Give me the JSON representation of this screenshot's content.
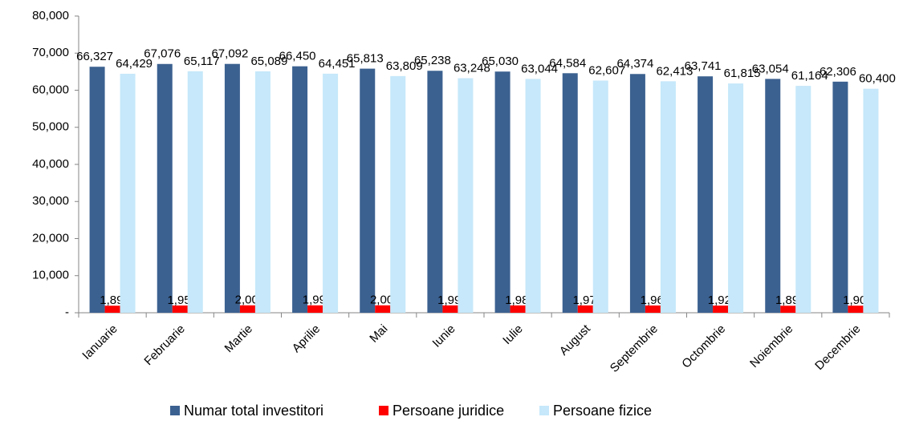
{
  "chart_data": {
    "type": "bar",
    "categories": [
      "Ianuarie",
      "Februarie",
      "Martie",
      "Aprilie",
      "Mai",
      "Iunie",
      "Iulie",
      "August",
      "Septembrie",
      "Octombrie",
      "Noiembrie",
      "Decembrie"
    ],
    "series": [
      {
        "name": "Numar total investitori",
        "color": "#3b6190",
        "values": [
          66327,
          67076,
          67092,
          66450,
          65813,
          65238,
          65030,
          64584,
          64374,
          63741,
          63054,
          62306
        ],
        "value_labels": [
          "66,327",
          "67,076",
          "67,092",
          "66,450",
          "65,813",
          "65,238",
          "65,030",
          "64,584",
          "64,374",
          "63,741",
          "63,054",
          "62,306"
        ]
      },
      {
        "name": "Persoane juridice",
        "color": "#ff0000",
        "values": [
          1898,
          1959,
          2003,
          1999,
          2004,
          1990,
          1986,
          1977,
          1961,
          1926,
          1890,
          1906
        ],
        "value_labels": [
          "1,898",
          "1,959",
          "2,003",
          "1,999",
          "2,004",
          "1,990",
          "1,986",
          "1,977",
          "1,961",
          "1,926",
          "1,890",
          "1,906"
        ]
      },
      {
        "name": "Persoane fizice",
        "color": "#c6e8fa",
        "values": [
          64429,
          65117,
          65089,
          64451,
          63809,
          63248,
          63044,
          62607,
          62413,
          61815,
          61164,
          60400
        ],
        "value_labels": [
          "64,429",
          "65,117",
          "65,089",
          "64,451",
          "63,809",
          "63,248",
          "63,044",
          "62,607",
          "62,413",
          "61,815",
          "61,164",
          "60,400"
        ]
      }
    ],
    "ylim": [
      0,
      80000
    ],
    "yticks": [
      {
        "value": 0,
        "label": "-"
      },
      {
        "value": 10000,
        "label": "10,000"
      },
      {
        "value": 20000,
        "label": "20,000"
      },
      {
        "value": 30000,
        "label": "30,000"
      },
      {
        "value": 40000,
        "label": "40,000"
      },
      {
        "value": 50000,
        "label": "50,000"
      },
      {
        "value": 60000,
        "label": "60,000"
      },
      {
        "value": 70000,
        "label": "70,000"
      },
      {
        "value": 80000,
        "label": "80,000"
      }
    ],
    "legend": "bottom"
  }
}
